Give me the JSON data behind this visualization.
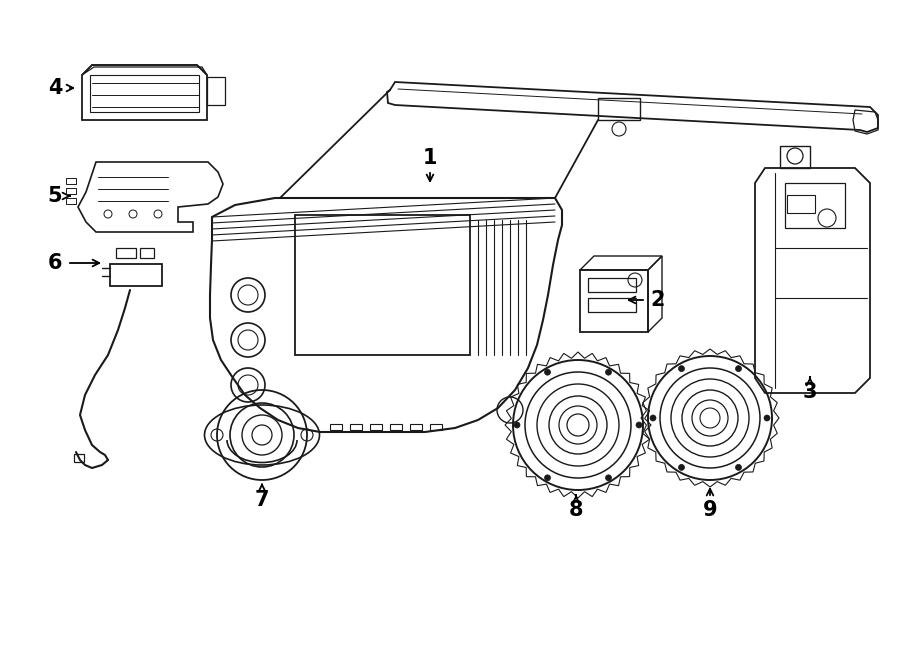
{
  "bg_color": "#ffffff",
  "line_color": "#1a1a1a",
  "lw": 1.3,
  "fig_width": 9.0,
  "fig_height": 6.62,
  "dpi": 100
}
